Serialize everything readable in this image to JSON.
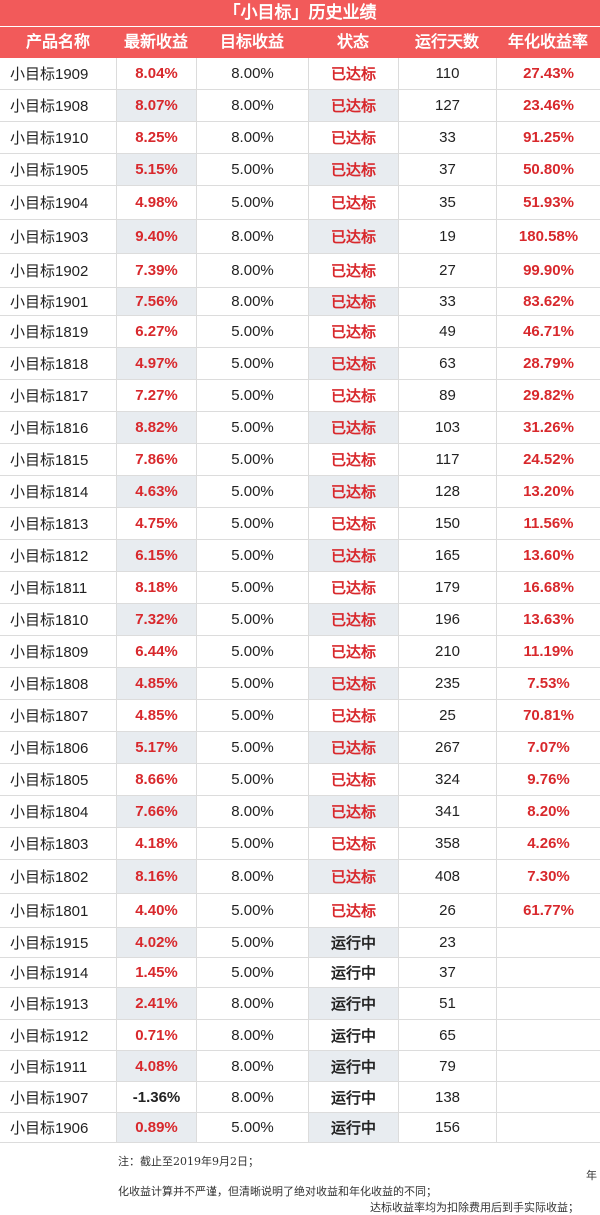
{
  "title": "「小目标」历史业绩",
  "headers": [
    "产品名称",
    "最新收益",
    "目标收益",
    "状态",
    "运行天数",
    "年化收益率"
  ],
  "colors": {
    "header_bg": "#f25a5a",
    "accent_red": "#d8282c",
    "shade": "#e8ecf0"
  },
  "rows": [
    {
      "name": "小目标1909",
      "latest": "8.04%",
      "target": "8.00%",
      "status": "已达标",
      "days": "110",
      "annual": "27.43%"
    },
    {
      "name": "小目标1908",
      "latest": "8.07%",
      "target": "8.00%",
      "status": "已达标",
      "days": "127",
      "annual": "23.46%"
    },
    {
      "name": "小目标1910",
      "latest": "8.25%",
      "target": "8.00%",
      "status": "已达标",
      "days": "33",
      "annual": "91.25%"
    },
    {
      "name": "小目标1905",
      "latest": "5.15%",
      "target": "5.00%",
      "status": "已达标",
      "days": "37",
      "annual": "50.80%"
    },
    {
      "name": "小目标1904",
      "latest": "4.98%",
      "target": "5.00%",
      "status": "已达标",
      "days": "35",
      "annual": "51.93%"
    },
    {
      "name": "小目标1903",
      "latest": "9.40%",
      "target": "8.00%",
      "status": "已达标",
      "days": "19",
      "annual": "180.58%"
    },
    {
      "name": "小目标1902",
      "latest": "7.39%",
      "target": "8.00%",
      "status": "已达标",
      "days": "27",
      "annual": "99.90%"
    },
    {
      "name": "小目标1901",
      "latest": "7.56%",
      "target": "8.00%",
      "status": "已达标",
      "days": "33",
      "annual": "83.62%"
    },
    {
      "name": "小目标1819",
      "latest": "6.27%",
      "target": "5.00%",
      "status": "已达标",
      "days": "49",
      "annual": "46.71%"
    },
    {
      "name": "小目标1818",
      "latest": "4.97%",
      "target": "5.00%",
      "status": "已达标",
      "days": "63",
      "annual": "28.79%"
    },
    {
      "name": "小目标1817",
      "latest": "7.27%",
      "target": "5.00%",
      "status": "已达标",
      "days": "89",
      "annual": "29.82%"
    },
    {
      "name": "小目标1816",
      "latest": "8.82%",
      "target": "5.00%",
      "status": "已达标",
      "days": "103",
      "annual": "31.26%"
    },
    {
      "name": "小目标1815",
      "latest": "7.86%",
      "target": "5.00%",
      "status": "已达标",
      "days": "117",
      "annual": "24.52%"
    },
    {
      "name": "小目标1814",
      "latest": "4.63%",
      "target": "5.00%",
      "status": "已达标",
      "days": "128",
      "annual": "13.20%"
    },
    {
      "name": "小目标1813",
      "latest": "4.75%",
      "target": "5.00%",
      "status": "已达标",
      "days": "150",
      "annual": "11.56%"
    },
    {
      "name": "小目标1812",
      "latest": "6.15%",
      "target": "5.00%",
      "status": "已达标",
      "days": "165",
      "annual": "13.60%"
    },
    {
      "name": "小目标1811",
      "latest": "8.18%",
      "target": "5.00%",
      "status": "已达标",
      "days": "179",
      "annual": "16.68%"
    },
    {
      "name": "小目标1810",
      "latest": "7.32%",
      "target": "5.00%",
      "status": "已达标",
      "days": "196",
      "annual": "13.63%"
    },
    {
      "name": "小目标1809",
      "latest": "6.44%",
      "target": "5.00%",
      "status": "已达标",
      "days": "210",
      "annual": "11.19%"
    },
    {
      "name": "小目标1808",
      "latest": "4.85%",
      "target": "5.00%",
      "status": "已达标",
      "days": "235",
      "annual": "7.53%"
    },
    {
      "name": "小目标1807",
      "latest": "4.85%",
      "target": "5.00%",
      "status": "已达标",
      "days": "25",
      "annual": "70.81%"
    },
    {
      "name": "小目标1806",
      "latest": "5.17%",
      "target": "5.00%",
      "status": "已达标",
      "days": "267",
      "annual": "7.07%"
    },
    {
      "name": "小目标1805",
      "latest": "8.66%",
      "target": "5.00%",
      "status": "已达标",
      "days": "324",
      "annual": "9.76%"
    },
    {
      "name": "小目标1804",
      "latest": "7.66%",
      "target": "8.00%",
      "status": "已达标",
      "days": "341",
      "annual": "8.20%"
    },
    {
      "name": "小目标1803",
      "latest": "4.18%",
      "target": "5.00%",
      "status": "已达标",
      "days": "358",
      "annual": "4.26%"
    },
    {
      "name": "小目标1802",
      "latest": "8.16%",
      "target": "8.00%",
      "status": "已达标",
      "days": "408",
      "annual": "7.30%"
    },
    {
      "name": "小目标1801",
      "latest": "4.40%",
      "target": "5.00%",
      "status": "已达标",
      "days": "26",
      "annual": "61.77%"
    },
    {
      "name": "小目标1915",
      "latest": "4.02%",
      "target": "5.00%",
      "status": "运行中",
      "days": "23",
      "annual": ""
    },
    {
      "name": "小目标1914",
      "latest": "1.45%",
      "target": "5.00%",
      "status": "运行中",
      "days": "37",
      "annual": ""
    },
    {
      "name": "小目标1913",
      "latest": "2.41%",
      "target": "8.00%",
      "status": "运行中",
      "days": "51",
      "annual": ""
    },
    {
      "name": "小目标1912",
      "latest": "0.71%",
      "target": "8.00%",
      "status": "运行中",
      "days": "65",
      "annual": ""
    },
    {
      "name": "小目标1911",
      "latest": "4.08%",
      "target": "8.00%",
      "status": "运行中",
      "days": "79",
      "annual": ""
    },
    {
      "name": "小目标1907",
      "latest": "-1.36%",
      "target": "8.00%",
      "status": "运行中",
      "days": "138",
      "annual": ""
    },
    {
      "name": "小目标1906",
      "latest": "0.89%",
      "target": "5.00%",
      "status": "运行中",
      "days": "156",
      "annual": ""
    }
  ],
  "notes": {
    "line1": "注：截止至2019年9月2日；",
    "line1_tail": "年",
    "line2": "化收益计算并不严谨，但清晰说明了绝对收益和年化收益的不同；",
    "line3": "达标收益率均为扣除费用后到手实际收益；"
  }
}
